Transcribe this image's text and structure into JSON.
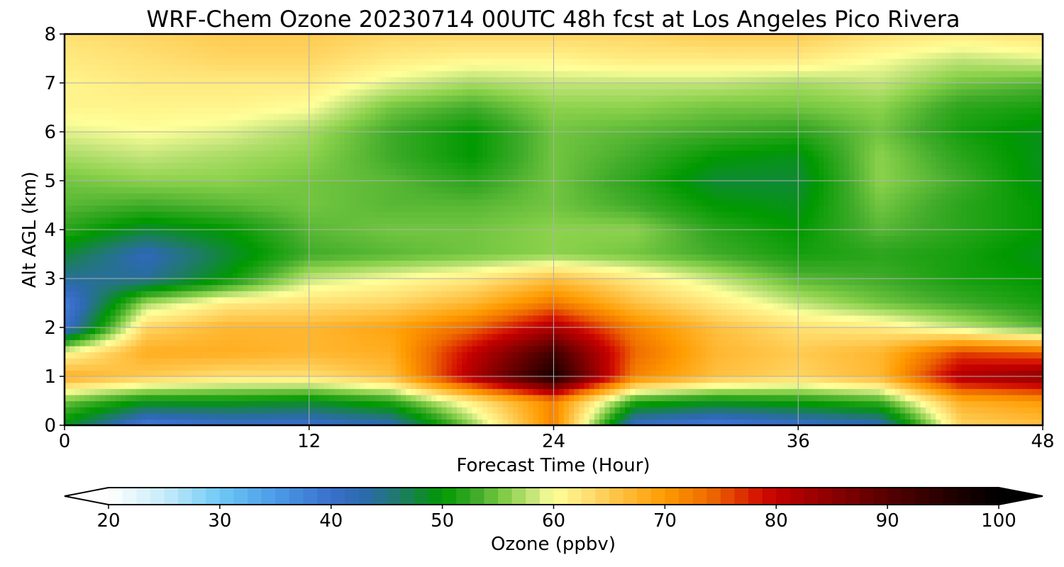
{
  "chart_data": {
    "type": "heatmap",
    "title": "WRF-Chem Ozone  20230714 00UTC 48h fcst at Los Angeles Pico Rivera",
    "xlabel": "Forecast Time (Hour)",
    "ylabel": "Alt AGL (km)",
    "xlim": [
      0,
      48
    ],
    "ylim": [
      0,
      8
    ],
    "xticks": [
      "0",
      "12",
      "24",
      "36",
      "48"
    ],
    "yticks": [
      "0",
      "1",
      "2",
      "3",
      "4",
      "5",
      "6",
      "7",
      "8"
    ],
    "grid": true,
    "x": [
      0,
      4,
      8,
      12,
      16,
      20,
      24,
      28,
      32,
      36,
      40,
      44,
      48
    ],
    "y": [
      0,
      0.5,
      1,
      1.5,
      2,
      2.5,
      3,
      3.5,
      4,
      4.5,
      5,
      5.5,
      6,
      6.5,
      7,
      7.5,
      8
    ],
    "z": [
      [
        49,
        38,
        40,
        40,
        42,
        56,
        72,
        40,
        38,
        40,
        42,
        64,
        66
      ],
      [
        55,
        50,
        50,
        49,
        52,
        62,
        72,
        52,
        50,
        51,
        53,
        68,
        70
      ],
      [
        68,
        65,
        63,
        63,
        66,
        82,
        97,
        72,
        66,
        64,
        67,
        82,
        85
      ],
      [
        60,
        68,
        68,
        67,
        68,
        80,
        92,
        74,
        67,
        65,
        67,
        76,
        74
      ],
      [
        40,
        64,
        67,
        67,
        69,
        74,
        82,
        72,
        66,
        63,
        62,
        58,
        54
      ],
      [
        38,
        57,
        62,
        63,
        64,
        67,
        73,
        66,
        62,
        58,
        55,
        53,
        51
      ],
      [
        44,
        44,
        50,
        58,
        60,
        62,
        66,
        62,
        58,
        54,
        53,
        51,
        50
      ],
      [
        48,
        42,
        48,
        53,
        54,
        55,
        56,
        55,
        53,
        51,
        52,
        51,
        49
      ],
      [
        52,
        48,
        50,
        54,
        55,
        55,
        56,
        56,
        52,
        50,
        54,
        52,
        50
      ],
      [
        54,
        53,
        54,
        55,
        54,
        54,
        55,
        53,
        50,
        49,
        55,
        52,
        50
      ],
      [
        55,
        56,
        56,
        55,
        54,
        52,
        55,
        52,
        48,
        48,
        56,
        53,
        49
      ],
      [
        57,
        58,
        57,
        56,
        53,
        50,
        55,
        53,
        50,
        49,
        56,
        52,
        49
      ],
      [
        59,
        60,
        59,
        57,
        53,
        50,
        55,
        54,
        53,
        52,
        55,
        51,
        49
      ],
      [
        61,
        61,
        61,
        60,
        55,
        53,
        56,
        56,
        55,
        55,
        56,
        52,
        51
      ],
      [
        61,
        62,
        62,
        62,
        59,
        57,
        58,
        58,
        58,
        57,
        58,
        55,
        54
      ],
      [
        62,
        63,
        64,
        64,
        62,
        61,
        61,
        62,
        62,
        62,
        60,
        58,
        59
      ],
      [
        63,
        64,
        65,
        65,
        64,
        64,
        64,
        64,
        65,
        65,
        63,
        62,
        63
      ]
    ],
    "colorbar": {
      "label": "Ozone  (ppbv)",
      "min": 20,
      "max": 100,
      "ticks": [
        "20",
        "30",
        "40",
        "50",
        "60",
        "70",
        "80",
        "90",
        "100"
      ],
      "extend": "both",
      "stops": [
        [
          20,
          "#ffffff"
        ],
        [
          25,
          "#c8ecfa"
        ],
        [
          30,
          "#6ec9f5"
        ],
        [
          35,
          "#4a9be8"
        ],
        [
          40,
          "#3a70cc"
        ],
        [
          43,
          "#2c6aae"
        ],
        [
          46,
          "#1f7a6a"
        ],
        [
          50,
          "#009900"
        ],
        [
          53,
          "#3fab29"
        ],
        [
          56,
          "#8cd24c"
        ],
        [
          58,
          "#c2e47a"
        ],
        [
          60,
          "#ffff99"
        ],
        [
          63,
          "#ffe073"
        ],
        [
          66,
          "#ffc040"
        ],
        [
          70,
          "#ff9b00"
        ],
        [
          74,
          "#ee6a00"
        ],
        [
          78,
          "#d81a00"
        ],
        [
          80,
          "#c40000"
        ],
        [
          85,
          "#8c0000"
        ],
        [
          90,
          "#560000"
        ],
        [
          95,
          "#280000"
        ],
        [
          100,
          "#000000"
        ]
      ]
    }
  }
}
